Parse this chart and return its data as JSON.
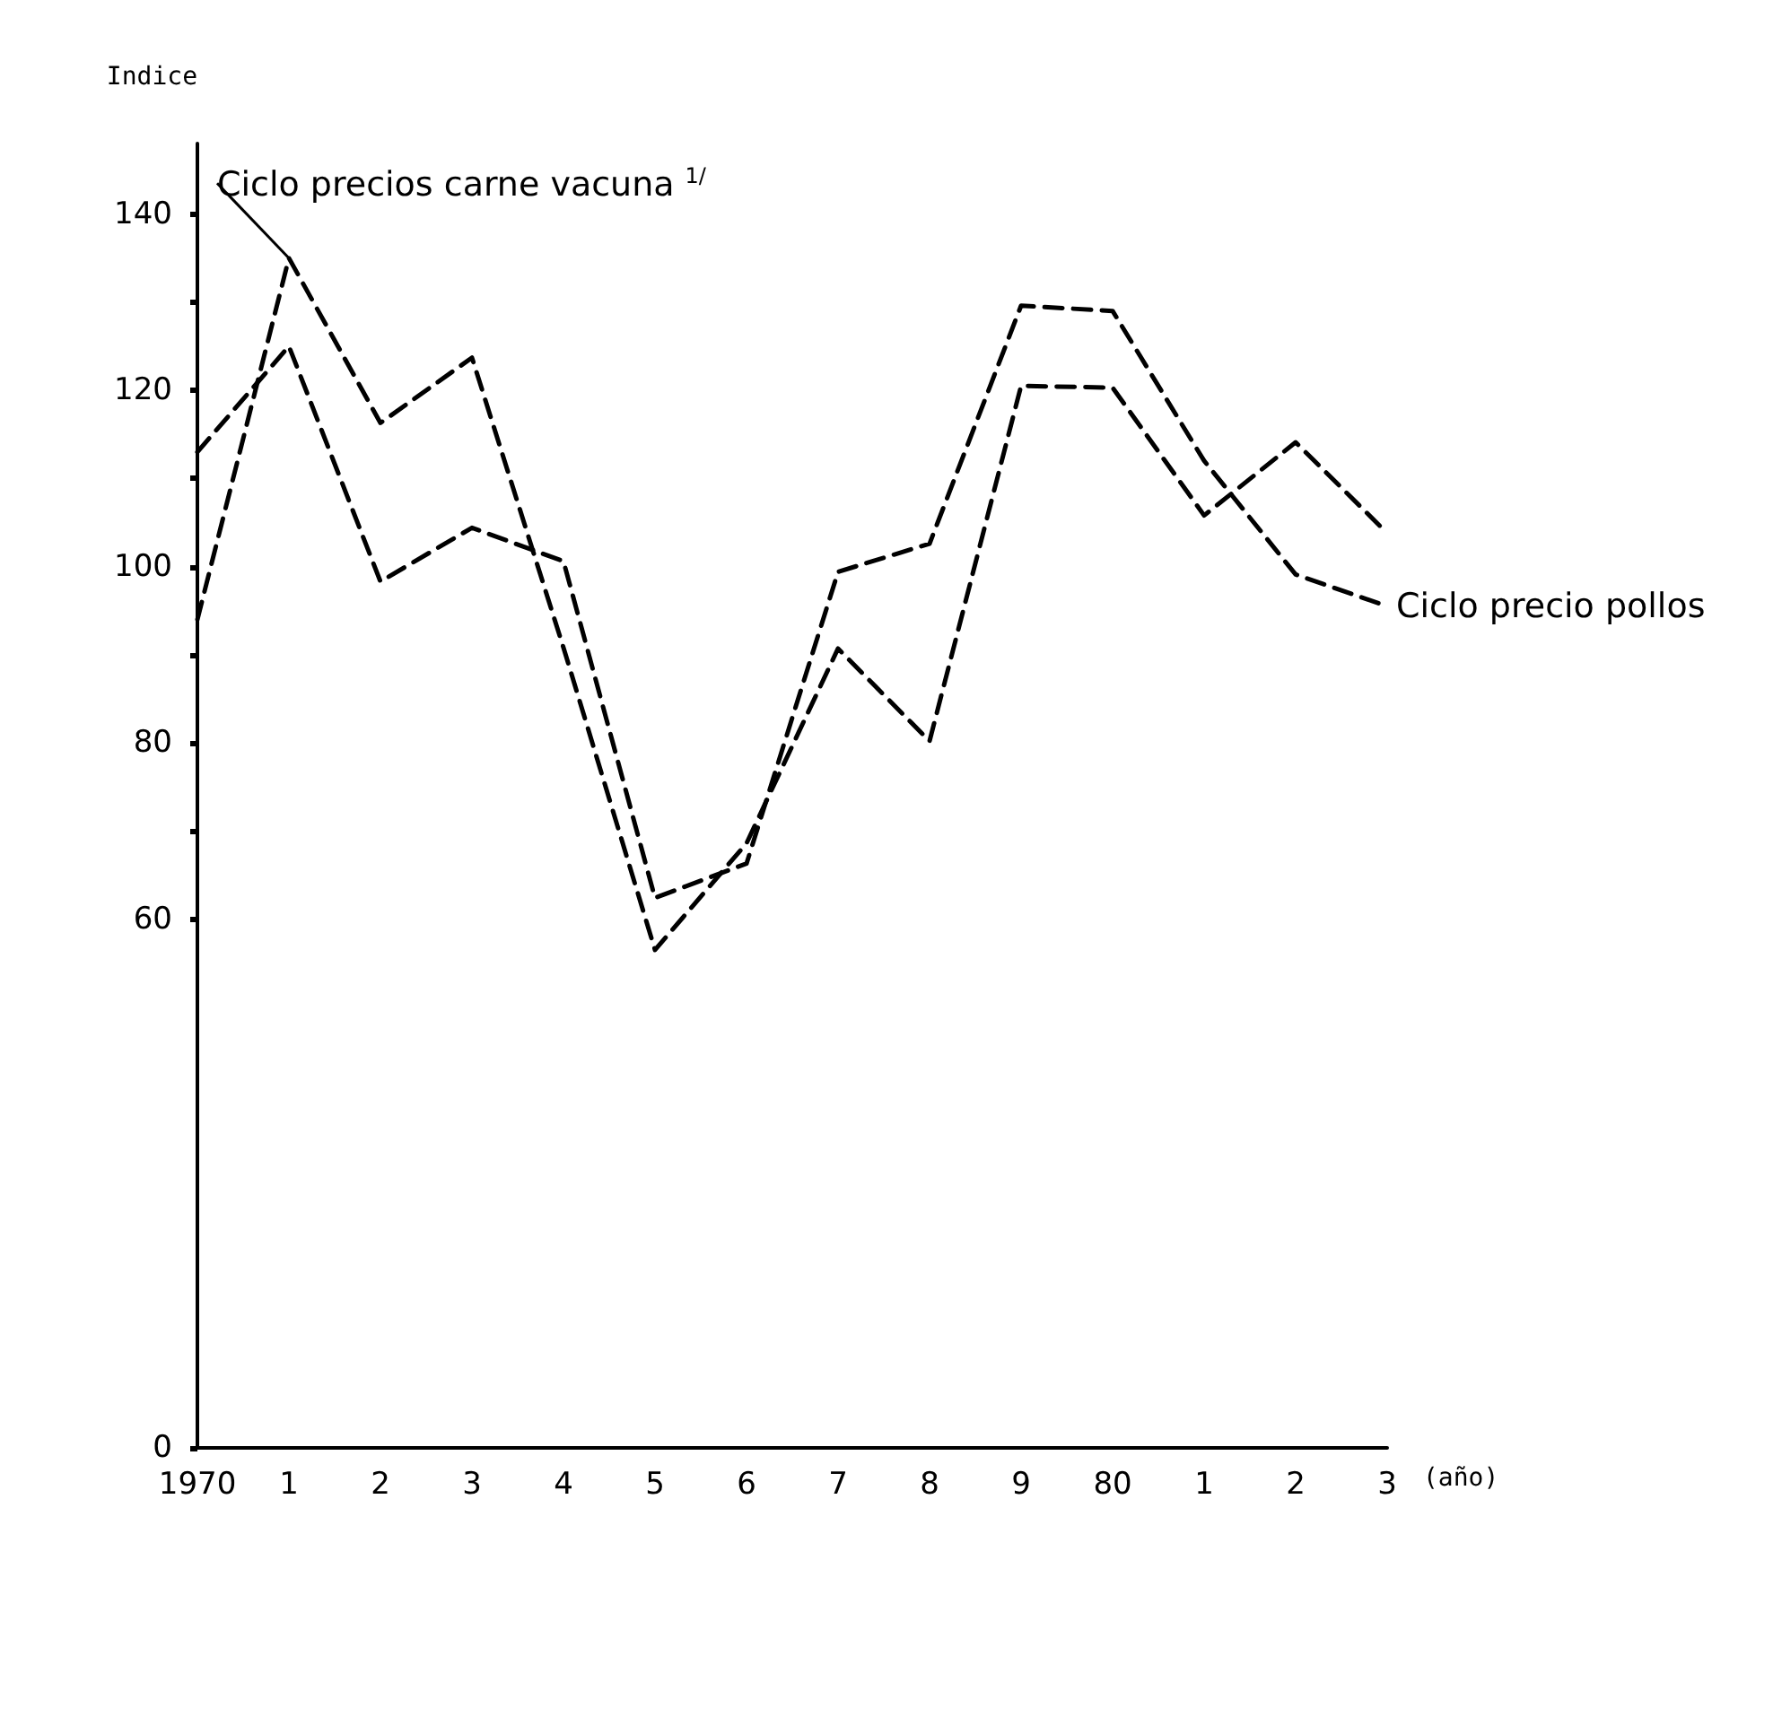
{
  "chart_data": {
    "type": "line",
    "ylabel": "Indice",
    "xlabel": "(año)",
    "categories": [
      "1970",
      "1",
      "2",
      "3",
      "4",
      "5",
      "6",
      "7",
      "8",
      "9",
      "80",
      "1",
      "2",
      "3"
    ],
    "series": [
      {
        "name": "Ciclo precios carne vacuna $^{1/}$",
        "color": "#000000",
        "line_style": "dashed",
        "values": [
          94,
          135,
          116.3,
          123.7,
          90.8,
          56.5,
          68.6,
          90.7,
          80.2,
          120.5,
          120.3,
          105.8,
          114.1,
          103.8
        ]
      },
      {
        "name": "Ciclo precio pollos",
        "color": "#000000",
        "line_style": "dashed",
        "values": [
          113,
          125,
          98.3,
          104.4,
          100.6,
          62.4,
          66.3,
          99.4,
          102.6,
          129.6,
          129,
          112,
          99.1,
          95.5
        ]
      }
    ],
    "ylim": [
      0,
      148
    ],
    "yticks": [
      0,
      60,
      {
        "value": 70,
        "label": null
      },
      80,
      {
        "value": 90,
        "label": null
      },
      100,
      {
        "value": 110,
        "label": null
      },
      120,
      {
        "value": 130,
        "label": null
      },
      140
    ],
    "grid": false,
    "marker": "none",
    "legend": false
  }
}
